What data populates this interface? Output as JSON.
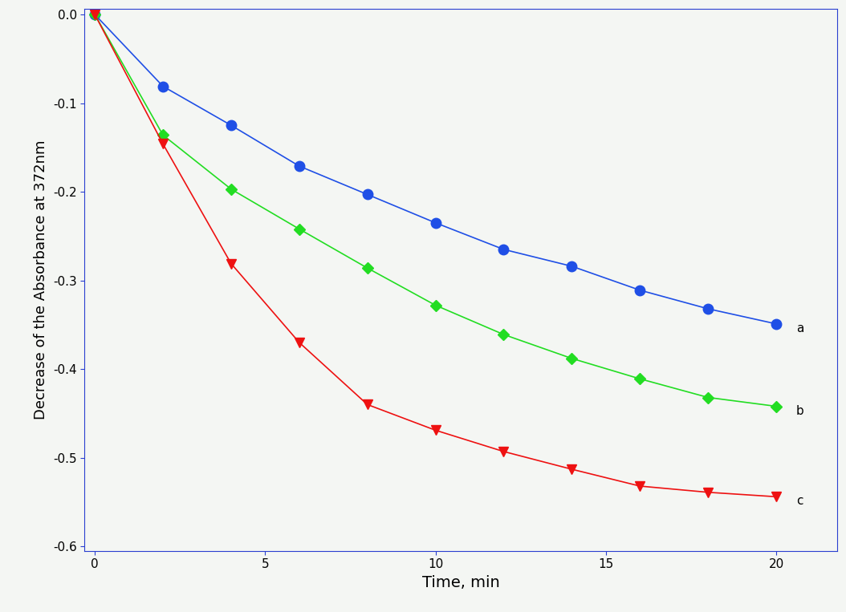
{
  "chart_data": {
    "type": "line",
    "x_label": "Time, min",
    "y_label": "Decrease of the Absorbance at 372nm",
    "x": [
      0,
      2,
      4,
      6,
      8,
      10,
      12,
      14,
      16,
      18,
      20
    ],
    "series": [
      {
        "name": "a",
        "color": "#1f4fe6",
        "marker": "circle",
        "values": [
          0,
          -0.081,
          -0.125,
          -0.171,
          -0.203,
          -0.235,
          -0.265,
          -0.284,
          -0.311,
          -0.332,
          -0.349
        ]
      },
      {
        "name": "b",
        "color": "#22dd22",
        "marker": "diamond",
        "values": [
          0,
          -0.136,
          -0.197,
          -0.242,
          -0.286,
          -0.328,
          -0.361,
          -0.388,
          -0.411,
          -0.432,
          -0.442
        ]
      },
      {
        "name": "c",
        "color": "#ee1111",
        "marker": "triangle_down",
        "values": [
          0,
          -0.146,
          -0.281,
          -0.37,
          -0.44,
          -0.469,
          -0.493,
          -0.513,
          -0.532,
          -0.539,
          -0.544
        ]
      }
    ],
    "xlim": [
      -0.3,
      21.8
    ],
    "ylim": [
      -0.605,
      0.006
    ],
    "xticks": [
      0,
      5,
      10,
      15,
      20
    ],
    "yticks": [
      0.0,
      -0.1,
      -0.2,
      -0.3,
      -0.4,
      -0.5,
      -0.6
    ],
    "grid": false
  }
}
